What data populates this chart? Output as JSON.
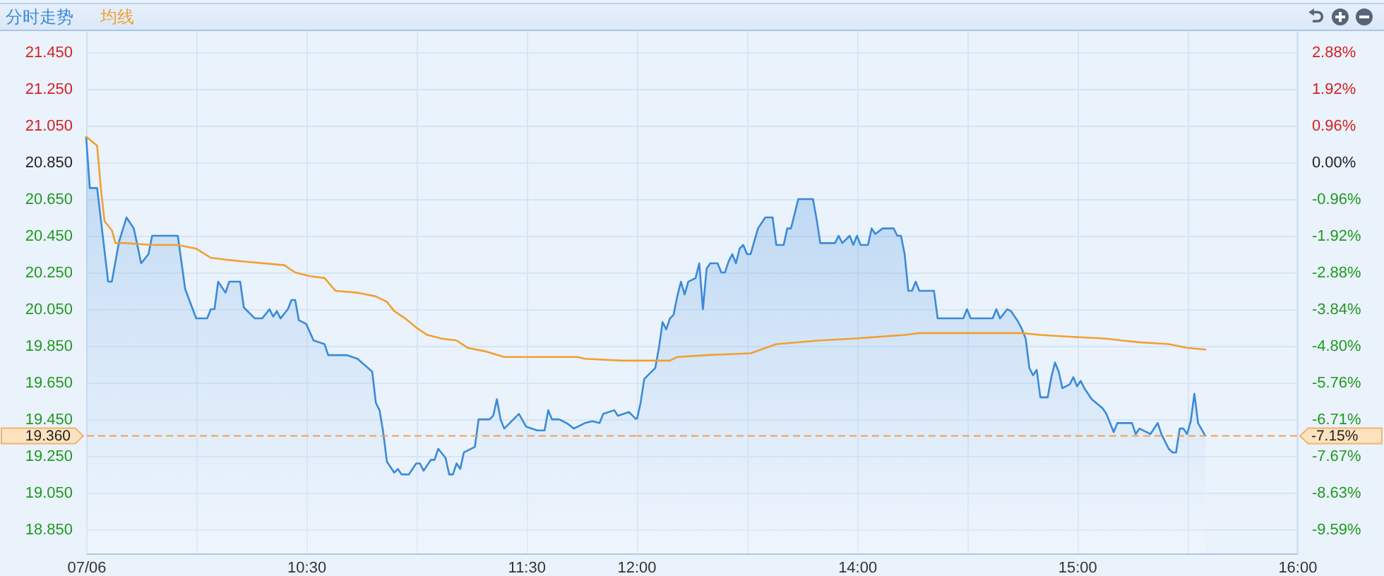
{
  "chart_data": [
    {
      "type": "line",
      "series": [
        {
          "name": "分时走势",
          "type": "area",
          "color": "#3a8ad8",
          "x": [
            "--07-06T09:30",
            "--07-06T09:31",
            "--07-06T09:33",
            "--07-06T09:36",
            "--07-06T09:37",
            "--07-06T09:39",
            "--07-06T09:41",
            "--07-06T09:43",
            "--07-06T09:45",
            "--07-06T09:47",
            "--07-06T09:48",
            "--07-06T09:55",
            "--07-06T09:57",
            "--07-06T10:00",
            "--07-06T10:03",
            "--07-06T10:04",
            "--07-06T10:05",
            "--07-06T10:06",
            "--07-06T10:08",
            "--07-06T10:09",
            "--07-06T10:12",
            "--07-06T10:13",
            "--07-06T10:16",
            "--07-06T10:18",
            "--07-06T10:20",
            "--07-06T10:21",
            "--07-06T10:22",
            "--07-06T10:23",
            "--07-06T10:25",
            "--07-06T10:26",
            "--07-06T10:27",
            "--07-06T10:28",
            "--07-06T10:30",
            "--07-06T10:32",
            "--07-06T10:35",
            "--07-06T10:36",
            "--07-06T10:41",
            "--07-06T10:44",
            "--07-06T10:48",
            "--07-06T10:49",
            "--07-06T10:50",
            "--07-06T10:51",
            "--07-06T10:52",
            "--07-06T10:54",
            "--07-06T10:55",
            "--07-06T10:56",
            "--07-06T10:58",
            "--07-06T11:00",
            "--07-06T11:01",
            "--07-06T11:02",
            "--07-06T11:04",
            "--07-06T11:05",
            "--07-06T11:06",
            "--07-06T11:08",
            "--07-06T11:09",
            "--07-06T11:10",
            "--07-06T11:11",
            "--07-06T11:12",
            "--07-06T11:13",
            "--07-06T11:16",
            "--07-06T11:17",
            "--07-06T11:20",
            "--07-06T11:21",
            "--07-06T11:22",
            "--07-06T11:23",
            "--07-06T11:24",
            "--07-06T11:28",
            "--07-06T11:30",
            "--07-06T11:33",
            "--07-06T11:35",
            "--07-06T11:36",
            "--07-06T11:37",
            "--07-06T11:39",
            "--07-06T11:41",
            "--07-06T11:43",
            "--07-06T11:46",
            "--07-06T11:48",
            "--07-06T11:50",
            "--07-06T11:51",
            "--07-06T11:54",
            "--07-06T11:55",
            "--07-06T11:58",
            "--07-06T11:59",
            "--07-06T12:00"
          ],
          "values": [
            20.99,
            20.71,
            20.71,
            20.2,
            20.2,
            20.42,
            20.55,
            20.49,
            20.3,
            20.35,
            20.45,
            20.45,
            20.16,
            20.0,
            20.0,
            20.05,
            20.05,
            20.2,
            20.14,
            20.2,
            20.2,
            20.06,
            20.0,
            20.0,
            20.05,
            20.01,
            20.04,
            20.0,
            20.05,
            20.1,
            20.1,
            19.99,
            19.97,
            19.88,
            19.86,
            19.8,
            19.8,
            19.78,
            19.71,
            19.54,
            19.5,
            19.38,
            19.22,
            19.16,
            19.18,
            19.15,
            19.15,
            19.21,
            19.21,
            19.17,
            19.23,
            19.23,
            19.29,
            19.24,
            19.15,
            19.15,
            19.21,
            19.18,
            19.27,
            19.3,
            19.45,
            19.45,
            19.47,
            19.56,
            19.45,
            19.4,
            19.48,
            19.41,
            19.39,
            19.39,
            19.5,
            19.45,
            19.45,
            19.43,
            19.4,
            19.43,
            19.44,
            19.43,
            19.48,
            19.5,
            19.47,
            19.49,
            19.47,
            19.45
          ]
        },
        {
          "name": "均线",
          "color": "#f0a030",
          "x": [
            "--07-06T09:30",
            "--07-06T09:33",
            "--07-06T09:34",
            "--07-06T09:35",
            "--07-06T09:37",
            "--07-06T09:38",
            "--07-06T09:41",
            "--07-06T09:48",
            "--07-06T09:55",
            "--07-06T10:00",
            "--07-06T10:04",
            "--07-06T10:08",
            "--07-06T10:13",
            "--07-06T10:24",
            "--07-06T10:27",
            "--07-06T10:31",
            "--07-06T10:35",
            "--07-06T10:38",
            "--07-06T10:44",
            "--07-06T10:49",
            "--07-06T10:52",
            "--07-06T10:54",
            "--07-06T10:57",
            "--07-06T11:00",
            "--07-06T11:03",
            "--07-06T11:07",
            "--07-06T11:11",
            "--07-06T11:14",
            "--07-06T11:19",
            "--07-06T11:24",
            "--07-06T11:44",
            "--07-06T11:46",
            "--07-06T11:56",
            "--07-06T12:00"
          ],
          "values": [
            20.99,
            20.94,
            20.71,
            20.53,
            20.48,
            20.41,
            20.41,
            20.4,
            20.4,
            20.38,
            20.33,
            20.32,
            20.31,
            20.29,
            20.25,
            20.23,
            20.22,
            20.15,
            20.14,
            20.12,
            20.09,
            20.04,
            20.0,
            19.95,
            19.91,
            19.89,
            19.88,
            19.84,
            19.82,
            19.79,
            19.79,
            19.78,
            19.77,
            19.77
          ]
        }
      ],
      "xlim": [
        "--07-06T09:30",
        "--07-06T12:00"
      ],
      "xticks": [
        {
          "value": "--07-06T09:30",
          "label": "07/06"
        },
        {
          "value": "--07-06T10:00",
          "label": null
        },
        {
          "value": "--07-06T10:30",
          "label": "10:30"
        },
        {
          "value": "--07-06T11:00",
          "label": null
        },
        {
          "value": "--07-06T11:30",
          "label": "11:30"
        },
        {
          "value": "--07-06T12:00",
          "label": "12:00"
        }
      ],
      "ylim": [
        18.72,
        21.565
      ],
      "yticks": [
        {
          "value": 18.85,
          "label": "18.850"
        },
        {
          "value": 19.05,
          "label": "19.050"
        },
        {
          "value": 19.25,
          "label": "19.250"
        },
        {
          "value": 19.45,
          "label": "19.450"
        },
        {
          "value": 19.65,
          "label": "19.650"
        },
        {
          "value": 19.85,
          "label": "19.850"
        },
        {
          "value": 20.05,
          "label": "20.050"
        },
        {
          "value": 20.25,
          "label": "20.250"
        },
        {
          "value": 20.45,
          "label": "20.450"
        },
        {
          "value": 20.65,
          "label": "20.650"
        },
        {
          "value": 20.85,
          "label": "20.850"
        },
        {
          "value": 21.05,
          "label": "21.050"
        },
        {
          "value": 21.25,
          "label": "21.250"
        },
        {
          "value": 21.45,
          "label": "21.450"
        }
      ],
      "grid": true,
      "legend": "top left",
      "ref_lines": [
        {
          "axis": "y",
          "value": 19.36,
          "label": "19.360",
          "color": "#f0a050",
          "line_style": "dashed"
        }
      ]
    },
    {
      "type": "line",
      "series": [
        {
          "type": "area",
          "color": "#3a8ad8",
          "x": [
            "--07-06T13:00",
            "--07-06T13:01",
            "--07-06T13:02",
            "--07-06T13:05",
            "--07-06T13:06",
            "--07-06T13:07",
            "--07-06T13:08",
            "--07-06T13:09",
            "--07-06T13:10",
            "--07-06T13:11",
            "--07-06T13:12",
            "--07-06T13:13",
            "--07-06T13:14",
            "--07-06T13:16",
            "--07-06T13:17",
            "--07-06T13:18",
            "--07-06T13:19",
            "--07-06T13:20",
            "--07-06T13:22",
            "--07-06T13:23",
            "--07-06T13:24",
            "--07-06T13:25",
            "--07-06T13:26",
            "--07-06T13:27",
            "--07-06T13:28",
            "--07-06T13:29",
            "--07-06T13:30",
            "--07-06T13:31",
            "--07-06T13:33",
            "--07-06T13:35",
            "--07-06T13:37",
            "--07-06T13:38",
            "--07-06T13:40",
            "--07-06T13:41",
            "--07-06T13:42",
            "--07-06T13:44",
            "--07-06T13:48",
            "--07-06T13:49",
            "--07-06T13:50",
            "--07-06T13:54",
            "--07-06T13:55",
            "--07-06T13:56",
            "--07-06T13:58",
            "--07-06T13:59",
            "--07-06T14:00",
            "--07-06T14:01",
            "--07-06T14:03",
            "--07-06T14:04",
            "--07-06T14:05",
            "--07-06T14:07",
            "--07-06T14:10",
            "--07-06T14:11",
            "--07-06T14:12",
            "--07-06T14:13",
            "--07-06T14:14",
            "--07-06T14:15",
            "--07-06T14:16",
            "--07-06T14:17",
            "--07-06T14:21",
            "--07-06T14:22",
            "--07-06T14:24",
            "--07-06T14:29",
            "--07-06T14:30",
            "--07-06T14:31",
            "--07-06T14:37",
            "--07-06T14:38",
            "--07-06T14:39",
            "--07-06T14:41",
            "--07-06T14:42",
            "--07-06T14:44",
            "--07-06T14:45",
            "--07-06T14:46",
            "--07-06T14:47",
            "--07-06T14:48",
            "--07-06T14:49",
            "--07-06T14:50",
            "--07-06T14:52",
            "--07-06T14:53",
            "--07-06T14:54",
            "--07-06T14:55",
            "--07-06T14:56",
            "--07-06T14:58",
            "--07-06T14:59",
            "--07-06T15:00",
            "--07-06T15:01",
            "--07-06T15:02",
            "--07-06T15:04",
            "--07-06T15:07",
            "--07-06T15:08",
            "--07-06T15:09",
            "--07-06T15:10",
            "--07-06T15:11",
            "--07-06T15:15",
            "--07-06T15:16",
            "--07-06T15:17",
            "--07-06T15:20",
            "--07-06T15:22",
            "--07-06T15:23",
            "--07-06T15:25",
            "--07-06T15:26",
            "--07-06T15:27",
            "--07-06T15:28",
            "--07-06T15:29",
            "--07-06T15:30",
            "--07-06T15:31",
            "--07-06T15:32",
            "--07-06T15:33",
            "--07-06T15:35"
          ],
          "values": [
            19.45,
            19.54,
            19.67,
            19.73,
            19.84,
            19.98,
            19.94,
            20.0,
            20.02,
            20.12,
            20.2,
            20.13,
            20.2,
            20.22,
            20.3,
            20.05,
            20.27,
            20.3,
            20.3,
            20.25,
            20.25,
            20.31,
            20.35,
            20.3,
            20.38,
            20.4,
            20.35,
            20.35,
            20.49,
            20.55,
            20.55,
            20.4,
            20.4,
            20.49,
            20.49,
            20.65,
            20.65,
            20.54,
            20.41,
            20.41,
            20.45,
            20.41,
            20.45,
            20.4,
            20.45,
            20.4,
            20.4,
            20.49,
            20.46,
            20.49,
            20.49,
            20.45,
            20.45,
            20.35,
            20.15,
            20.15,
            20.2,
            20.15,
            20.15,
            20.0,
            20.0,
            20.0,
            20.05,
            20.0,
            20.0,
            20.05,
            20.0,
            20.05,
            20.04,
            19.98,
            19.94,
            19.89,
            19.73,
            19.69,
            19.72,
            19.57,
            19.57,
            19.68,
            19.76,
            19.71,
            19.62,
            19.64,
            19.68,
            19.63,
            19.66,
            19.62,
            19.56,
            19.51,
            19.48,
            19.43,
            19.38,
            19.43,
            19.43,
            19.37,
            19.4,
            19.37,
            19.43,
            19.37,
            19.29,
            19.27,
            19.27,
            19.4,
            19.4,
            19.37,
            19.44,
            19.59,
            19.43,
            19.36
          ]
        },
        {
          "color": "#f0a030",
          "x": [
            "--07-06T13:00",
            "--07-06T13:09",
            "--07-06T13:11",
            "--07-06T13:19",
            "--07-06T13:31",
            "--07-06T13:38",
            "--07-06T13:50",
            "--07-06T13:59",
            "--07-06T14:13",
            "--07-06T14:17",
            "--07-06T14:45",
            "--07-06T14:50",
            "--07-06T14:58",
            "--07-06T15:08",
            "--07-06T15:12",
            "--07-06T15:17",
            "--07-06T15:25",
            "--07-06T15:30",
            "--07-06T15:35"
          ],
          "values": [
            19.77,
            19.77,
            19.79,
            19.8,
            19.81,
            19.86,
            19.88,
            19.89,
            19.91,
            19.92,
            19.92,
            19.91,
            19.9,
            19.89,
            19.88,
            19.87,
            19.86,
            19.84,
            19.83
          ]
        }
      ],
      "xlim": [
        "--07-06T13:00",
        "--07-06T16:00"
      ],
      "xticks": [
        {
          "value": "--07-06T13:30",
          "label": null
        },
        {
          "value": "--07-06T14:00",
          "label": "14:00"
        },
        {
          "value": "--07-06T14:30",
          "label": null
        },
        {
          "value": "--07-06T15:00",
          "label": "15:00"
        },
        {
          "value": "--07-06T15:30",
          "label": null
        },
        {
          "value": "--07-06T16:00",
          "label": "16:00"
        }
      ],
      "ylim": [
        18.72,
        21.565
      ],
      "y2lim": [
        -10.22,
        3.43
      ],
      "y2ticks": [
        {
          "value": -9.59,
          "label": "-9.59%"
        },
        {
          "value": -8.63,
          "label": "-8.63%"
        },
        {
          "value": -7.67,
          "label": "-7.67%"
        },
        {
          "value": -6.71,
          "label": "-6.71%"
        },
        {
          "value": -5.76,
          "label": "-5.76%"
        },
        {
          "value": -4.8,
          "label": "-4.80%"
        },
        {
          "value": -3.84,
          "label": "-3.84%"
        },
        {
          "value": -2.88,
          "label": "-2.88%"
        },
        {
          "value": -1.92,
          "label": "-1.92%"
        },
        {
          "value": -0.96,
          "label": "-0.96%"
        },
        {
          "value": 0,
          "label": "0.00%"
        },
        {
          "value": 0.96,
          "label": "0.96%"
        },
        {
          "value": 1.92,
          "label": "1.92%"
        },
        {
          "value": 2.88,
          "label": "2.88%"
        }
      ],
      "grid": true,
      "ref_lines": [
        {
          "axis": "y2",
          "value": -7.15,
          "label": "-7.15%",
          "color": "#f0a050",
          "line_style": "dashed"
        }
      ]
    }
  ]
}
